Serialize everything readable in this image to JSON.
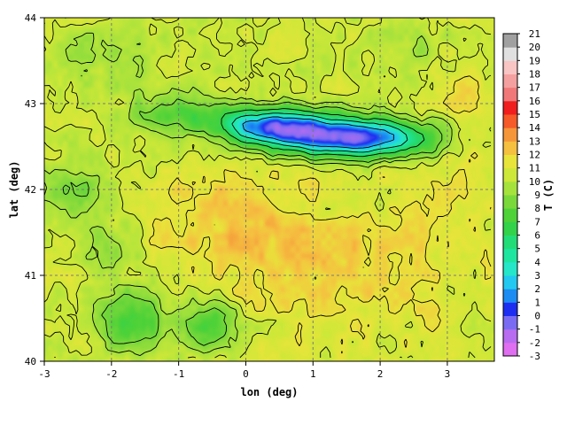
{
  "chart_data": {
    "type": "heatmap",
    "xlabel": "lon (deg)",
    "ylabel": "lat (deg)",
    "xlim": [
      -3,
      3.7
    ],
    "ylim": [
      40,
      44
    ],
    "x_ticks": [
      -3,
      -2,
      -1,
      0,
      1,
      2,
      3
    ],
    "y_ticks": [
      40,
      41,
      42,
      43,
      44
    ],
    "grid": true,
    "colorbar": {
      "label": "T (C)",
      "min": -3,
      "max": 21,
      "ticks": [
        -3,
        -2,
        -1,
        0,
        1,
        2,
        3,
        4,
        5,
        6,
        7,
        8,
        9,
        10,
        11,
        12,
        13,
        14,
        15,
        16,
        17,
        18,
        19,
        20,
        21
      ],
      "colors": {
        "-3": "#e06ef0",
        "-2": "#b86cf0",
        "-1": "#7a6cf2",
        "0": "#1e2ef0",
        "1": "#1c8cf2",
        "2": "#22c8f0",
        "3": "#25e6c8",
        "4": "#1ee6a0",
        "5": "#22dc78",
        "6": "#32d24a",
        "7": "#4ed238",
        "8": "#7ad83a",
        "9": "#a6e23c",
        "10": "#cde838",
        "11": "#e8e43a",
        "12": "#f5c040",
        "13": "#f5963a",
        "14": "#f55a28",
        "15": "#f01e1e",
        "16": "#f07878",
        "17": "#f5a0a0",
        "18": "#f8c4c4",
        "19": "#e0e0e0",
        "20": "#a0a0a0",
        "21": "#1e1e1e"
      }
    },
    "temperature_features": [
      {
        "kind": "background",
        "lon": 0.5,
        "lat": 42.0,
        "value": 10.0
      },
      {
        "kind": "warm",
        "lon": 1.5,
        "lat": 41.3,
        "value": 11.4,
        "sx": 2.2,
        "sy": 1.0
      },
      {
        "kind": "warm",
        "lon": -0.3,
        "lat": 41.6,
        "value": 11.2,
        "sx": 1.4,
        "sy": 0.6
      },
      {
        "kind": "warm",
        "lon": 3.3,
        "lat": 42.9,
        "value": 11.0,
        "sx": 0.6,
        "sy": 0.8
      },
      {
        "kind": "mountain",
        "lon": 1.6,
        "lat": 42.6,
        "value": -1.0,
        "sx": 1.1,
        "sy": 0.22
      },
      {
        "kind": "mountain",
        "lon": 0.4,
        "lat": 42.75,
        "value": 1.0,
        "sx": 0.8,
        "sy": 0.2
      },
      {
        "kind": "mountain",
        "lon": -1.0,
        "lat": 42.9,
        "value": 7.0,
        "sx": 0.7,
        "sy": 0.22
      },
      {
        "kind": "cool",
        "lon": -1.7,
        "lat": 40.5,
        "value": 6.5,
        "sx": 0.5,
        "sy": 0.35
      },
      {
        "kind": "cool",
        "lon": -0.6,
        "lat": 40.45,
        "value": 6.8,
        "sx": 0.45,
        "sy": 0.3
      },
      {
        "kind": "cool",
        "lon": -2.6,
        "lat": 42.0,
        "value": 7.5,
        "sx": 0.45,
        "sy": 0.25
      },
      {
        "kind": "cool",
        "lon": -2.0,
        "lat": 41.3,
        "value": 8.5,
        "sx": 0.4,
        "sy": 0.4
      },
      {
        "kind": "cool",
        "lon": 1.0,
        "lat": 41.75,
        "value": 8.8,
        "sx": 0.35,
        "sy": 0.2
      },
      {
        "kind": "cool",
        "lon": 2.0,
        "lat": 41.85,
        "value": 9.0,
        "sx": 0.4,
        "sy": 0.25
      },
      {
        "kind": "cool",
        "lon": 2.4,
        "lat": 43.7,
        "value": 8.9,
        "sx": 0.6,
        "sy": 0.35
      },
      {
        "kind": "cool",
        "lon": -2.2,
        "lat": 43.6,
        "value": 9.2,
        "sx": 1.0,
        "sy": 0.4
      }
    ]
  }
}
